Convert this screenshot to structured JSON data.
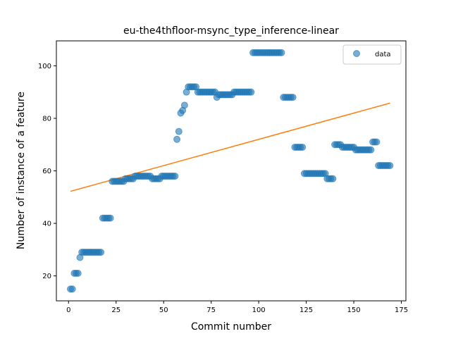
{
  "chart_data": {
    "type": "scatter",
    "title": "eu-the4thfloor-msync_type_inference-linear",
    "xlabel": "Commit number",
    "ylabel": "Number of instance of a feature",
    "xlim": [
      -6.4,
      177.4
    ],
    "ylim": [
      10.5,
      109.5
    ],
    "x_ticks": [
      0,
      25,
      50,
      75,
      100,
      125,
      150,
      175
    ],
    "y_ticks": [
      20,
      40,
      60,
      80,
      100
    ],
    "grid": false,
    "legend_position": "top-right",
    "series": [
      {
        "name": "data",
        "kind": "scatter",
        "color": "#1f77b4",
        "points": [
          [
            1,
            15
          ],
          [
            2,
            15
          ],
          [
            3,
            21
          ],
          [
            4,
            21
          ],
          [
            5,
            21
          ],
          [
            6,
            27
          ],
          [
            7,
            29
          ],
          [
            8,
            29
          ],
          [
            9,
            29
          ],
          [
            10,
            29
          ],
          [
            11,
            29
          ],
          [
            12,
            29
          ],
          [
            13,
            29
          ],
          [
            14,
            29
          ],
          [
            15,
            29
          ],
          [
            16,
            29
          ],
          [
            17,
            29
          ],
          [
            18,
            42
          ],
          [
            19,
            42
          ],
          [
            20,
            42
          ],
          [
            21,
            42
          ],
          [
            22,
            42
          ],
          [
            23,
            56
          ],
          [
            24,
            56
          ],
          [
            25,
            56
          ],
          [
            26,
            56
          ],
          [
            27,
            56
          ],
          [
            28,
            56
          ],
          [
            29,
            56
          ],
          [
            30,
            57
          ],
          [
            31,
            57
          ],
          [
            32,
            57
          ],
          [
            33,
            57
          ],
          [
            34,
            57
          ],
          [
            35,
            58
          ],
          [
            36,
            58
          ],
          [
            37,
            58
          ],
          [
            38,
            58
          ],
          [
            39,
            58
          ],
          [
            40,
            58
          ],
          [
            41,
            58
          ],
          [
            42,
            58
          ],
          [
            43,
            58
          ],
          [
            44,
            57
          ],
          [
            45,
            57
          ],
          [
            46,
            57
          ],
          [
            47,
            57
          ],
          [
            48,
            57
          ],
          [
            49,
            58
          ],
          [
            50,
            58
          ],
          [
            51,
            58
          ],
          [
            52,
            58
          ],
          [
            53,
            58
          ],
          [
            54,
            58
          ],
          [
            55,
            58
          ],
          [
            56,
            58
          ],
          [
            57,
            72
          ],
          [
            58,
            75
          ],
          [
            59,
            82
          ],
          [
            60,
            83
          ],
          [
            61,
            85
          ],
          [
            62,
            90
          ],
          [
            63,
            92
          ],
          [
            64,
            92
          ],
          [
            65,
            92
          ],
          [
            66,
            92
          ],
          [
            67,
            92
          ],
          [
            68,
            90
          ],
          [
            69,
            90
          ],
          [
            70,
            90
          ],
          [
            71,
            90
          ],
          [
            72,
            90
          ],
          [
            73,
            90
          ],
          [
            74,
            90
          ],
          [
            75,
            90
          ],
          [
            76,
            90
          ],
          [
            77,
            90
          ],
          [
            78,
            88
          ],
          [
            79,
            89
          ],
          [
            80,
            89
          ],
          [
            81,
            89
          ],
          [
            82,
            89
          ],
          [
            83,
            89
          ],
          [
            84,
            89
          ],
          [
            85,
            89
          ],
          [
            86,
            89
          ],
          [
            87,
            90
          ],
          [
            88,
            90
          ],
          [
            89,
            90
          ],
          [
            90,
            90
          ],
          [
            91,
            90
          ],
          [
            92,
            90
          ],
          [
            93,
            90
          ],
          [
            94,
            90
          ],
          [
            95,
            90
          ],
          [
            96,
            90
          ],
          [
            97,
            105
          ],
          [
            98,
            105
          ],
          [
            99,
            105
          ],
          [
            100,
            105
          ],
          [
            101,
            105
          ],
          [
            102,
            105
          ],
          [
            103,
            105
          ],
          [
            104,
            105
          ],
          [
            105,
            105
          ],
          [
            106,
            105
          ],
          [
            107,
            105
          ],
          [
            108,
            105
          ],
          [
            109,
            105
          ],
          [
            110,
            105
          ],
          [
            111,
            105
          ],
          [
            112,
            105
          ],
          [
            113,
            88
          ],
          [
            114,
            88
          ],
          [
            115,
            88
          ],
          [
            116,
            88
          ],
          [
            117,
            88
          ],
          [
            118,
            88
          ],
          [
            119,
            69
          ],
          [
            120,
            69
          ],
          [
            121,
            69
          ],
          [
            122,
            69
          ],
          [
            123,
            69
          ],
          [
            124,
            59
          ],
          [
            125,
            59
          ],
          [
            126,
            59
          ],
          [
            127,
            59
          ],
          [
            128,
            59
          ],
          [
            129,
            59
          ],
          [
            130,
            59
          ],
          [
            131,
            59
          ],
          [
            132,
            59
          ],
          [
            133,
            59
          ],
          [
            134,
            59
          ],
          [
            135,
            59
          ],
          [
            136,
            57
          ],
          [
            137,
            57
          ],
          [
            138,
            57
          ],
          [
            139,
            57
          ],
          [
            140,
            70
          ],
          [
            141,
            70
          ],
          [
            142,
            70
          ],
          [
            143,
            70
          ],
          [
            144,
            69
          ],
          [
            145,
            69
          ],
          [
            146,
            69
          ],
          [
            147,
            69
          ],
          [
            148,
            69
          ],
          [
            149,
            69
          ],
          [
            150,
            69
          ],
          [
            151,
            68
          ],
          [
            152,
            68
          ],
          [
            153,
            68
          ],
          [
            154,
            68
          ],
          [
            155,
            68
          ],
          [
            156,
            68
          ],
          [
            157,
            68
          ],
          [
            158,
            68
          ],
          [
            159,
            68
          ],
          [
            160,
            71
          ],
          [
            161,
            71
          ],
          [
            162,
            71
          ],
          [
            163,
            62
          ],
          [
            164,
            62
          ],
          [
            165,
            62
          ],
          [
            166,
            62
          ],
          [
            167,
            62
          ],
          [
            168,
            62
          ],
          [
            169,
            62
          ]
        ]
      },
      {
        "name": "",
        "kind": "line",
        "color": "#ff7f0e",
        "points": [
          [
            1,
            52.2
          ],
          [
            169,
            85.8
          ]
        ]
      }
    ]
  }
}
